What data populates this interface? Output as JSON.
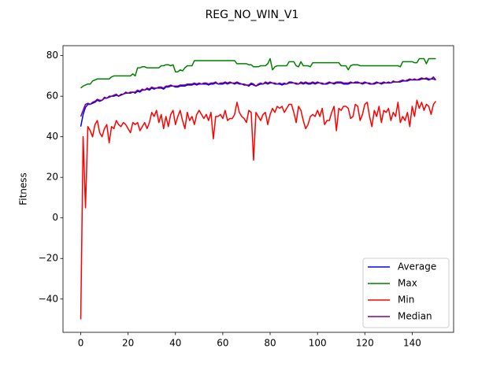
{
  "chart_data": {
    "type": "line",
    "title": "REG_NO_WIN_V1",
    "y_label": "Fitness",
    "x": [
      0,
      1,
      2,
      3,
      4,
      5,
      6,
      7,
      8,
      9,
      10,
      11,
      12,
      13,
      14,
      15,
      16,
      17,
      18,
      19,
      20,
      21,
      22,
      23,
      24,
      25,
      26,
      27,
      28,
      29,
      30,
      31,
      32,
      33,
      34,
      35,
      36,
      37,
      38,
      39,
      40,
      41,
      42,
      43,
      44,
      45,
      46,
      47,
      48,
      49,
      50,
      51,
      52,
      53,
      54,
      55,
      56,
      57,
      58,
      59,
      60,
      61,
      62,
      63,
      64,
      65,
      66,
      67,
      68,
      69,
      70,
      71,
      72,
      73,
      74,
      75,
      76,
      77,
      78,
      79,
      80,
      81,
      82,
      83,
      84,
      85,
      86,
      87,
      88,
      89,
      90,
      91,
      92,
      93,
      94,
      95,
      96,
      97,
      98,
      99,
      100,
      101,
      102,
      103,
      104,
      105,
      106,
      107,
      108,
      109,
      110,
      111,
      112,
      113,
      114,
      115,
      116,
      117,
      118,
      119,
      120,
      121,
      122,
      123,
      124,
      125,
      126,
      127,
      128,
      129,
      130,
      131,
      132,
      133,
      134,
      135,
      136,
      137,
      138,
      139,
      140,
      141,
      142,
      143,
      144,
      145,
      146,
      147,
      148,
      149,
      150
    ],
    "series": [
      {
        "name": "Average",
        "color": "#0000ff",
        "values": [
          45,
          51,
          54.5,
          56,
          56,
          56.5,
          57,
          58,
          57.5,
          58,
          59,
          59,
          59.5,
          60,
          60,
          60.5,
          60,
          60.5,
          61,
          61.5,
          61.5,
          61.5,
          62,
          61.5,
          62.5,
          62,
          63,
          63,
          63.5,
          63,
          64,
          63.5,
          64,
          64,
          64,
          63.5,
          64.5,
          64.5,
          65,
          65,
          64.5,
          64.5,
          65,
          65,
          65,
          65.5,
          65.5,
          65.5,
          66,
          65.5,
          66,
          66,
          66,
          66,
          65.5,
          66,
          66,
          66.5,
          66,
          66,
          66,
          66.5,
          66,
          66.5,
          66.5,
          66,
          66.5,
          66,
          66,
          65.5,
          65.5,
          65,
          66,
          65.5,
          65,
          65.5,
          66,
          66,
          66.5,
          66,
          66.5,
          66.5,
          66,
          66,
          66,
          65.5,
          66,
          66,
          66.5,
          66.5,
          66.5,
          66,
          66,
          66.5,
          66,
          66.5,
          66,
          66,
          66.5,
          66,
          66.5,
          66.5,
          66,
          66,
          66,
          66.5,
          66.5,
          66,
          66.5,
          66.5,
          66.5,
          66,
          66,
          66,
          66.5,
          66.5,
          66.5,
          66.5,
          66.5,
          66,
          66.5,
          66.5,
          66,
          66,
          66,
          66.5,
          66.5,
          66,
          66.5,
          66.5,
          66.5,
          66.5,
          67,
          67,
          67,
          67,
          67.5,
          67.5,
          67.5,
          68,
          68,
          68,
          68,
          68,
          68.5,
          68.5,
          68.5,
          68,
          68.5,
          68.5,
          68
        ]
      },
      {
        "name": "Max",
        "color": "#008000",
        "values": [
          64,
          65,
          65.5,
          66,
          66,
          67.5,
          68,
          68.5,
          68.5,
          68.5,
          68.5,
          68.5,
          68.5,
          69.5,
          70,
          70,
          70,
          70,
          70,
          70,
          70,
          70,
          71,
          70,
          74,
          74,
          74.5,
          74.5,
          74,
          74,
          74,
          74,
          74,
          74,
          75,
          75,
          75.5,
          75.5,
          75,
          75.5,
          72,
          72,
          73,
          72.5,
          74,
          75,
          75,
          75,
          77.5,
          77.5,
          77.5,
          77.5,
          77.5,
          77.5,
          77.5,
          77.5,
          77.5,
          77.5,
          77.5,
          77.5,
          77.5,
          77.5,
          77.5,
          77.5,
          77.5,
          77.5,
          76,
          76,
          76,
          76,
          76,
          75.5,
          75.5,
          74.5,
          74.5,
          74.5,
          75,
          75,
          75,
          76,
          78.5,
          73,
          74.5,
          75,
          75,
          75,
          75,
          75,
          77,
          77,
          77,
          75,
          74.5,
          77,
          75,
          75,
          75,
          74.5,
          76.5,
          76.5,
          76.5,
          76.5,
          76.5,
          76.5,
          76.5,
          76.5,
          76.5,
          76.5,
          76.5,
          76.5,
          75,
          75,
          75,
          73,
          75,
          75.5,
          75.5,
          75.5,
          75,
          75,
          75,
          75,
          75,
          75,
          75,
          75,
          75,
          75,
          75,
          75,
          75,
          75,
          75,
          75,
          75,
          74.5,
          77,
          77,
          77,
          77,
          77,
          76.5,
          76.5,
          78.5,
          78.5,
          78.5,
          76,
          78.5,
          78.5,
          78.5,
          78.5
        ]
      },
      {
        "name": "Min",
        "color": "#ff0000",
        "values": [
          -50,
          40,
          5,
          45,
          43,
          40,
          46,
          48,
          42,
          40,
          44,
          46,
          37,
          45,
          44,
          48,
          46,
          45,
          47,
          46,
          44,
          42,
          47,
          46,
          47,
          43,
          45,
          47,
          44,
          47,
          52,
          50,
          53,
          47,
          51,
          44,
          50,
          45,
          51,
          53,
          46,
          50,
          53,
          48,
          44,
          52,
          48,
          50,
          46,
          51,
          53,
          51,
          49,
          51,
          48,
          52,
          39,
          50,
          50,
          51,
          49,
          53,
          48,
          49,
          49,
          51,
          57,
          52,
          50,
          49,
          47,
          53,
          52,
          28.5,
          52,
          50,
          48,
          51,
          52,
          46,
          51,
          54,
          52,
          55,
          54,
          55,
          52,
          54,
          56,
          56,
          52,
          47,
          55,
          53,
          48,
          44,
          46,
          50,
          51,
          50,
          53,
          50,
          54,
          46,
          48,
          48,
          52,
          55,
          43,
          54,
          53,
          55,
          55,
          54,
          49,
          50,
          56,
          55,
          48,
          51,
          56,
          57,
          50,
          45,
          53,
          50,
          55,
          47,
          53,
          52,
          54,
          48,
          52,
          50,
          57,
          47,
          50,
          48,
          52,
          45,
          55,
          50,
          58,
          54,
          57,
          53,
          56,
          55,
          51,
          56,
          57.5
        ]
      },
      {
        "name": "Median",
        "color": "#800080",
        "values": [
          50,
          53,
          56,
          56.5,
          56,
          57,
          57.5,
          58.5,
          58,
          58,
          59.5,
          59,
          60,
          60,
          60.5,
          61,
          60,
          61,
          61,
          62,
          61.5,
          62,
          62,
          62,
          63,
          62.5,
          63.5,
          63,
          64,
          63.5,
          64.5,
          64,
          64,
          64.5,
          64.5,
          64,
          65,
          65,
          65.5,
          65,
          65,
          65,
          65.5,
          65.5,
          65.5,
          66,
          66,
          66,
          66.5,
          66,
          66.5,
          66,
          66.5,
          66.5,
          66,
          66.5,
          66.5,
          67,
          66,
          66.5,
          66.5,
          67,
          66.5,
          67,
          66.5,
          66.5,
          67,
          66.5,
          66,
          66,
          65.5,
          65.5,
          66.5,
          66,
          65,
          66,
          66.5,
          66,
          67,
          66.5,
          67,
          66.5,
          66.5,
          66,
          66.5,
          66,
          66.5,
          66,
          67,
          67,
          66.5,
          66.5,
          66,
          67,
          66.5,
          67,
          66.5,
          66.5,
          67,
          66.5,
          67,
          66.5,
          66.5,
          66,
          66.5,
          67,
          66.5,
          66.5,
          67,
          67,
          67,
          66.5,
          66.5,
          66.5,
          67,
          66.5,
          67,
          67,
          66.5,
          66.5,
          67,
          66.5,
          66.5,
          66,
          66.5,
          67,
          66.5,
          66.5,
          67,
          66.5,
          67,
          66.5,
          67.5,
          67,
          67,
          67.5,
          68,
          67.5,
          68,
          68.5,
          68,
          68.5,
          68,
          68.5,
          69,
          68.5,
          69,
          68.5,
          68.5,
          69.5,
          68
        ]
      }
    ],
    "xlim": [
      -7.5,
      157.5
    ],
    "xticks": [
      0,
      20,
      40,
      60,
      80,
      100,
      120,
      140
    ],
    "ylim": [
      -56.4,
      84.9
    ],
    "yticks": [
      {
        "value": -40,
        "label": "−40"
      },
      {
        "value": -20,
        "label": "−20"
      },
      0,
      20,
      40,
      60,
      80
    ],
    "legend_position": "lower right",
    "grid": false
  }
}
